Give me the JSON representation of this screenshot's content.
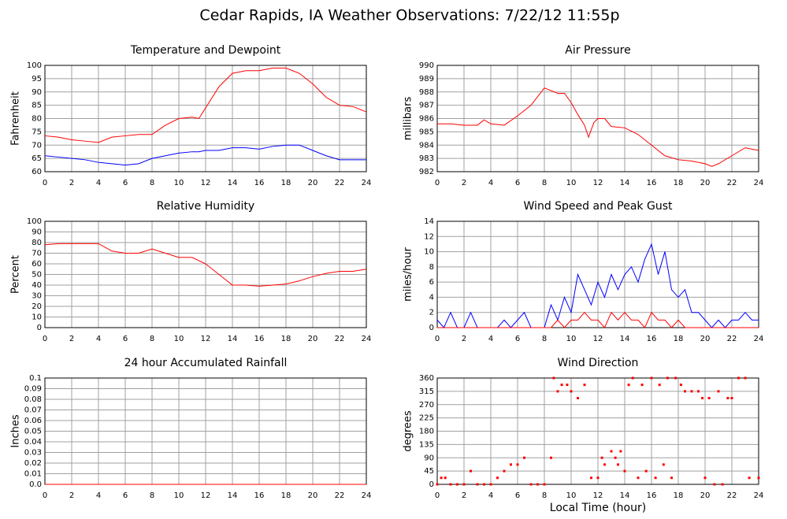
{
  "title": "Cedar Rapids, IA Weather Observations: 7/22/12 11:55p",
  "chart_data": [
    {
      "type": "line",
      "title": "Temperature and Dewpoint",
      "ylabel": "Fahrenheit",
      "x": [
        0,
        1,
        2,
        3,
        4,
        5,
        6,
        7,
        8,
        9,
        10,
        11,
        11.5,
        12,
        13,
        14,
        15,
        16,
        17,
        18,
        19,
        20,
        21,
        22,
        23,
        24
      ],
      "series": [
        {
          "color": "#ff0000",
          "values": [
            73.5,
            73,
            72,
            71.5,
            71,
            73,
            73.5,
            74,
            74,
            77.5,
            80,
            80.5,
            80,
            84,
            92,
            97,
            98,
            98,
            99,
            99,
            97,
            93,
            88,
            85,
            84.5,
            82.5
          ]
        },
        {
          "color": "#0000ff",
          "values": [
            66,
            65.5,
            65,
            64.5,
            63.5,
            63,
            62.5,
            63,
            65,
            66,
            67,
            67.5,
            67.5,
            68,
            68,
            69,
            69,
            68.5,
            69.5,
            70,
            70,
            68,
            66,
            64.5,
            64.5,
            64.5
          ]
        }
      ],
      "xlim": [
        0,
        24
      ],
      "xticks": [
        0,
        2,
        4,
        6,
        8,
        10,
        12,
        14,
        16,
        18,
        20,
        22,
        24
      ],
      "ylim": [
        60,
        100
      ],
      "yticks": [
        60,
        65,
        70,
        75,
        80,
        85,
        90,
        95,
        100
      ],
      "grid": true
    },
    {
      "type": "line",
      "title": "Air Pressure",
      "ylabel": "millibars",
      "x": [
        0,
        1,
        2,
        3,
        3.5,
        4,
        5,
        6,
        7,
        8,
        9,
        9.5,
        10,
        10.5,
        11,
        11.3,
        11.7,
        12,
        12.5,
        13,
        14,
        15,
        16,
        17,
        18,
        19,
        20,
        20.5,
        21,
        22,
        23,
        24
      ],
      "series": [
        {
          "color": "#ff0000",
          "values": [
            985.6,
            985.6,
            985.5,
            985.5,
            985.9,
            985.6,
            985.5,
            986.2,
            987,
            988.3,
            987.9,
            987.9,
            987.2,
            986.3,
            985.5,
            984.6,
            985.7,
            986,
            986,
            985.4,
            985.3,
            984.8,
            984,
            983.2,
            982.9,
            982.8,
            982.6,
            982.4,
            982.6,
            983.2,
            983.8,
            983.6
          ]
        }
      ],
      "xlim": [
        0,
        24
      ],
      "xticks": [
        0,
        2,
        4,
        6,
        8,
        10,
        12,
        14,
        16,
        18,
        20,
        22,
        24
      ],
      "ylim": [
        982,
        990
      ],
      "yticks": [
        982,
        983,
        984,
        985,
        986,
        987,
        988,
        989,
        990
      ],
      "grid": true
    },
    {
      "type": "line",
      "title": "Relative Humidity",
      "ylabel": "Percent",
      "x": [
        0,
        1,
        2,
        3,
        4,
        5,
        6,
        7,
        8,
        9,
        10,
        11,
        12,
        13,
        14,
        15,
        16,
        17,
        18,
        19,
        20,
        21,
        22,
        23,
        24
      ],
      "series": [
        {
          "color": "#ff0000",
          "values": [
            78,
            79,
            79,
            79,
            79,
            72,
            70,
            70,
            74,
            70,
            66,
            66,
            60,
            50,
            40,
            40,
            39,
            40,
            41,
            44,
            48,
            51,
            53,
            53,
            55
          ]
        }
      ],
      "xlim": [
        0,
        24
      ],
      "xticks": [
        0,
        2,
        4,
        6,
        8,
        10,
        12,
        14,
        16,
        18,
        20,
        22,
        24
      ],
      "ylim": [
        0,
        100
      ],
      "yticks": [
        0,
        10,
        20,
        30,
        40,
        50,
        60,
        70,
        80,
        90,
        100
      ],
      "grid": true
    },
    {
      "type": "line",
      "title": "Wind Speed and Peak Gust",
      "ylabel": "miles/hour",
      "x": [
        0,
        0.5,
        1,
        1.5,
        2,
        2.5,
        3,
        3.5,
        4,
        4.5,
        5,
        5.5,
        6,
        6.5,
        7,
        7.5,
        8,
        8.5,
        9,
        9.5,
        10,
        10.5,
        11,
        11.5,
        12,
        12.5,
        13,
        13.5,
        14,
        14.5,
        15,
        15.5,
        16,
        16.5,
        17,
        17.5,
        18,
        18.5,
        19,
        19.5,
        20,
        20.5,
        21,
        21.5,
        22,
        22.5,
        23,
        23.5,
        24
      ],
      "series": [
        {
          "color": "#0000ff",
          "values": [
            1,
            0,
            2,
            0,
            0,
            2,
            0,
            0,
            0,
            0,
            1,
            0,
            1,
            2,
            0,
            0,
            0,
            3,
            1,
            4,
            2,
            7,
            5,
            3,
            6,
            4,
            7,
            5,
            7,
            8,
            6,
            9,
            11,
            7,
            10,
            5,
            4,
            5,
            2,
            2,
            1,
            0,
            1,
            0,
            1,
            1,
            2,
            1,
            1
          ]
        },
        {
          "color": "#ff0000",
          "values": [
            0,
            0,
            0,
            0,
            0,
            0,
            0,
            0,
            0,
            0,
            0,
            0,
            0,
            0,
            0,
            0,
            0,
            0,
            1,
            0,
            1,
            1,
            2,
            1,
            1,
            0,
            2,
            1,
            2,
            1,
            1,
            0,
            2,
            1,
            1,
            0,
            1,
            0,
            0,
            0,
            0,
            0,
            0,
            0,
            0,
            0,
            0,
            0,
            0
          ]
        }
      ],
      "xlim": [
        0,
        24
      ],
      "xticks": [
        0,
        2,
        4,
        6,
        8,
        10,
        12,
        14,
        16,
        18,
        20,
        22,
        24
      ],
      "ylim": [
        0,
        14
      ],
      "yticks": [
        0,
        2,
        4,
        6,
        8,
        10,
        12,
        14
      ],
      "grid": true
    },
    {
      "type": "line",
      "title": "24 hour Accumulated Rainfall",
      "ylabel": "Inches",
      "x": [
        0,
        24
      ],
      "series": [
        {
          "color": "#ff0000",
          "values": [
            0,
            0
          ]
        }
      ],
      "xlim": [
        0,
        24
      ],
      "xticks": [
        0,
        2,
        4,
        6,
        8,
        10,
        12,
        14,
        16,
        18,
        20,
        22,
        24
      ],
      "ylim": [
        0,
        0.1
      ],
      "yticks": [
        {
          "value": 0,
          "label": "0.0"
        },
        0.01,
        0.02,
        0.03,
        0.04,
        0.05,
        0.06,
        0.07,
        0.08,
        0.09,
        {
          "value": 0.1,
          "label": "0.1"
        }
      ],
      "grid": true
    },
    {
      "type": "scatter",
      "title": "Wind Direction",
      "ylabel": "degrees",
      "xlabel": "Local Time (hour)",
      "x": [
        0,
        0.3,
        0.6,
        1,
        1.5,
        2,
        2.5,
        3,
        3.5,
        4,
        4.5,
        5,
        5.5,
        6,
        6.5,
        7,
        7.5,
        8,
        8.5,
        8.7,
        9,
        9.3,
        9.7,
        10,
        10.5,
        11,
        11.5,
        12,
        12.3,
        12.5,
        13,
        13.3,
        13.5,
        13.7,
        14,
        14.3,
        14.6,
        15,
        15.3,
        15.6,
        16,
        16.3,
        16.6,
        16.9,
        17.2,
        17.5,
        17.8,
        18.2,
        18.5,
        19,
        19.5,
        19.8,
        20,
        20.3,
        20.7,
        21,
        21.3,
        21.7,
        22,
        22.5,
        23,
        23.3,
        24
      ],
      "values": [
        0,
        22,
        22,
        0,
        0,
        0,
        45,
        0,
        0,
        0,
        22,
        45,
        67,
        67,
        90,
        0,
        0,
        0,
        90,
        360,
        315,
        337,
        337,
        315,
        292,
        337,
        22,
        22,
        90,
        67,
        112,
        90,
        67,
        112,
        45,
        337,
        360,
        22,
        337,
        45,
        360,
        22,
        337,
        67,
        360,
        22,
        360,
        337,
        315,
        315,
        315,
        292,
        22,
        292,
        0,
        315,
        0,
        292,
        292,
        360,
        360,
        22,
        22
      ],
      "color": "#ff0000",
      "xlim": [
        0,
        24
      ],
      "xticks": [
        0,
        2,
        4,
        6,
        8,
        10,
        12,
        14,
        16,
        18,
        20,
        22,
        24
      ],
      "ylim": [
        0,
        360
      ],
      "yticks": [
        0,
        45,
        90,
        135,
        180,
        225,
        270,
        315,
        360
      ],
      "grid": true
    }
  ]
}
